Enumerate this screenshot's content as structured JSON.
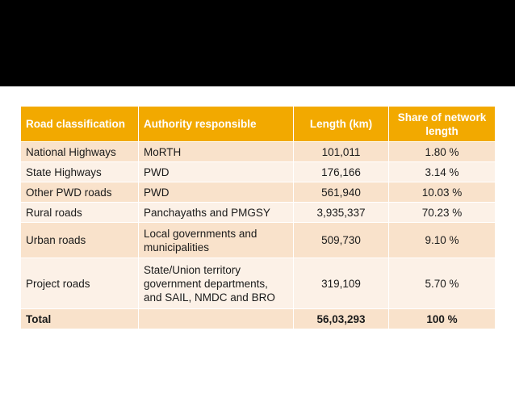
{
  "colors": {
    "top_band": "#000000",
    "header_bg": "#f2a900",
    "row_odd_bg": "#f9e2cb",
    "row_even_bg": "#fcf1e7"
  },
  "table": {
    "headers": {
      "classification": "Road classification",
      "authority": "Authority responsible",
      "length": "Length (km)",
      "share": "Share of network length"
    },
    "rows": [
      {
        "classification": "National Highways",
        "authority": "MoRTH",
        "length": "101,011",
        "share": "1.80 %"
      },
      {
        "classification": "State Highways",
        "authority": "PWD",
        "length": "176,166",
        "share": "3.14 %"
      },
      {
        "classification": "Other PWD roads",
        "authority": "PWD",
        "length": "561,940",
        "share": "10.03 %"
      },
      {
        "classification": "Rural roads",
        "authority": "Panchayaths and PMGSY",
        "length": "3,935,337",
        "share": "70.23 %"
      },
      {
        "classification": "Urban roads",
        "authority": "Local governments and municipalities",
        "length": "509,730",
        "share": "9.10 %"
      },
      {
        "classification": "Project roads",
        "authority": "State/Union territory government departments, and SAIL, NMDC and BRO",
        "length": "319,109",
        "share": "5.70 %"
      }
    ],
    "total": {
      "classification": "Total",
      "authority": "",
      "length": "56,03,293",
      "share": "100 %"
    }
  }
}
